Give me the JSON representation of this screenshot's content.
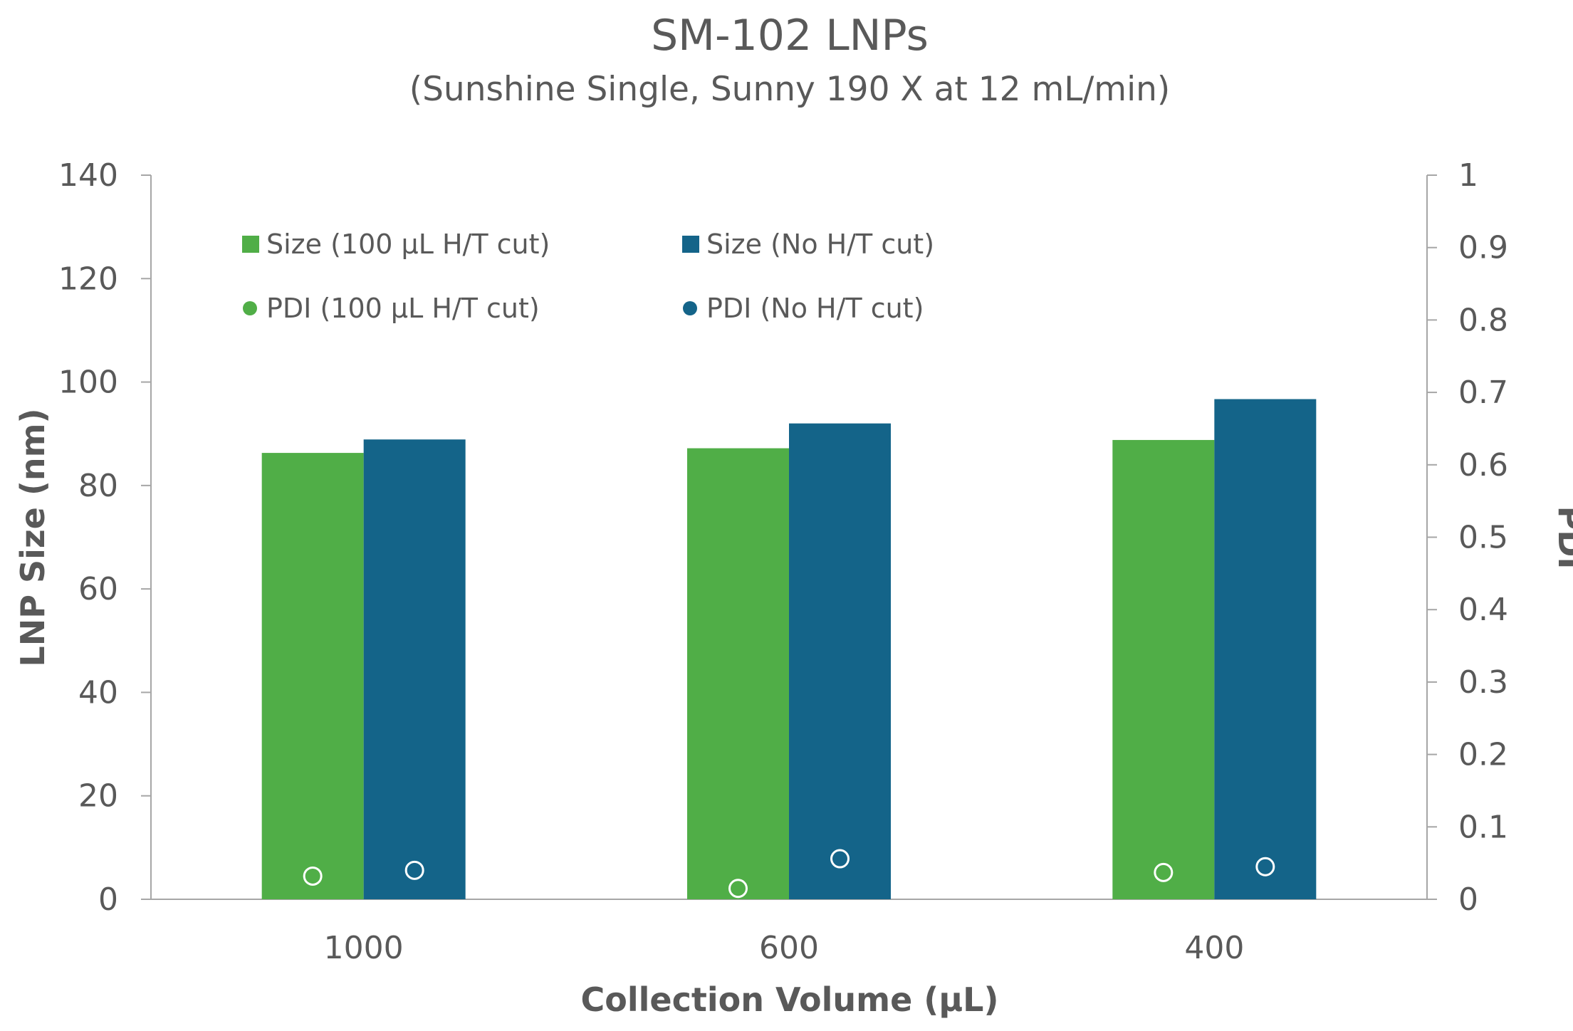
{
  "chart_data": {
    "type": "bar",
    "title": "SM-102 LNPs",
    "subtitle": "(Sunshine Single, Sunny 190 X at 12 mL/min)",
    "xlabel": "Collection Volume (µL)",
    "ylabel": "LNP Size (nm)",
    "y2label": "PDI",
    "categories": [
      "1000",
      "600",
      "400"
    ],
    "ylim": [
      0,
      140
    ],
    "yticks": [
      "0",
      "20",
      "40",
      "60",
      "80",
      "100",
      "120",
      "140"
    ],
    "y2lim": [
      0,
      1
    ],
    "y2ticks": [
      "0",
      "0.1",
      "0.2",
      "0.3",
      "0.4",
      "0.5",
      "0.6",
      "0.7",
      "0.8",
      "0.9",
      "1"
    ],
    "grid": false,
    "legend_position": "top-left",
    "series": [
      {
        "name": "Size (100 µL H/T cut)",
        "kind": "bar",
        "axis": "left",
        "color": "#50AE47",
        "values": [
          86.3,
          87.2,
          88.8
        ]
      },
      {
        "name": "Size (No H/T cut)",
        "kind": "bar",
        "axis": "left",
        "color": "#146489",
        "values": [
          88.9,
          92.0,
          96.7
        ]
      },
      {
        "name": "PDI (100 µL H/T cut)",
        "kind": "marker",
        "axis": "right",
        "color": "#50AE47",
        "values": [
          0.032,
          0.015,
          0.037
        ]
      },
      {
        "name": "PDI (No H/T cut)",
        "kind": "marker",
        "axis": "right",
        "color": "#146489",
        "values": [
          0.04,
          0.056,
          0.045
        ]
      }
    ]
  }
}
